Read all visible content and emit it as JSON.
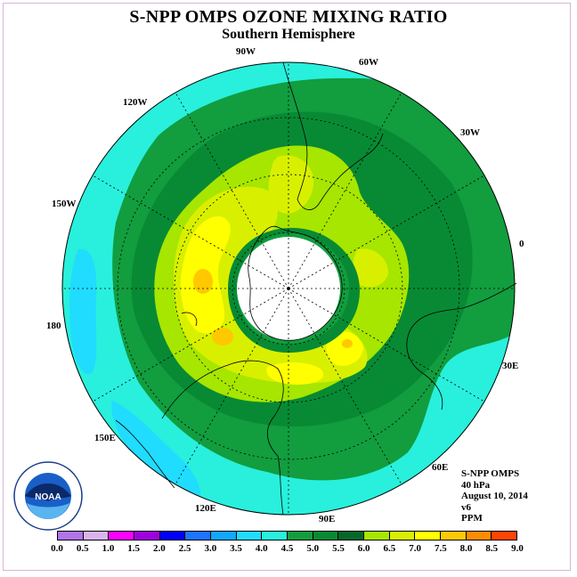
{
  "header": {
    "title": "S-NPP OMPS OZONE MIXING RATIO",
    "subtitle": "Southern Hemisphere"
  },
  "map": {
    "projection": "south polar stereographic",
    "longitude_labels": {
      "lon_90w": "90W",
      "lon_60w": "60W",
      "lon_30w": "30W",
      "lon_0": "0",
      "lon_30e": "30E",
      "lon_60e": "60E",
      "lon_90e": "90E",
      "lon_120e": "120E",
      "lon_150e": "150E",
      "lon_180": "180",
      "lon_150w": "150W",
      "lon_120w": "120W"
    }
  },
  "info": {
    "instrument": "S-NPP OMPS",
    "level": "40 hPa",
    "date": "August 10, 2014",
    "version": "v6",
    "units": "PPM"
  },
  "colorbar": {
    "ticks": [
      "0.0",
      "0.5",
      "1.0",
      "1.5",
      "2.0",
      "2.5",
      "3.0",
      "3.5",
      "4.0",
      "4.5",
      "5.0",
      "5.5",
      "6.0",
      "6.5",
      "7.0",
      "7.5",
      "8.0",
      "8.5",
      "9.0"
    ],
    "colors": [
      "#b074e8",
      "#d8b4ee",
      "#ff00ff",
      "#a000e0",
      "#0000ff",
      "#1c74ff",
      "#10a8ff",
      "#20dcff",
      "#28f0dc",
      "#129d3f",
      "#088a34",
      "#04682a",
      "#a6e600",
      "#d8f000",
      "#ffff00",
      "#ffc800",
      "#ff8c00",
      "#ff4400",
      "#8c5c40"
    ]
  },
  "logo": {
    "text": "NOAA"
  },
  "chart_data": {
    "type": "heatmap",
    "title": "S-NPP OMPS OZONE MIXING RATIO",
    "subtitle": "Southern Hemisphere",
    "units": "PPM",
    "scale_range": [
      0.0,
      9.0
    ],
    "regions": [
      {
        "area": "outer mid-latitudes (near 30S)",
        "value_range": [
          3.5,
          4.0
        ]
      },
      {
        "area": "mid-latitude belt",
        "value_range": [
          4.0,
          4.5
        ]
      },
      {
        "area": "vortex edge ring",
        "value_range": [
          4.5,
          5.0
        ]
      },
      {
        "area": "collar around vortex",
        "value_range": [
          5.0,
          6.5
        ]
      },
      {
        "area": "maxima near 150W-180 and 90E-120E",
        "value_range": [
          6.5,
          7.0
        ]
      },
      {
        "area": "inner vortex ring",
        "value_range": [
          4.0,
          4.5
        ]
      },
      {
        "area": "south pole (no data)",
        "value_range": null
      }
    ]
  }
}
